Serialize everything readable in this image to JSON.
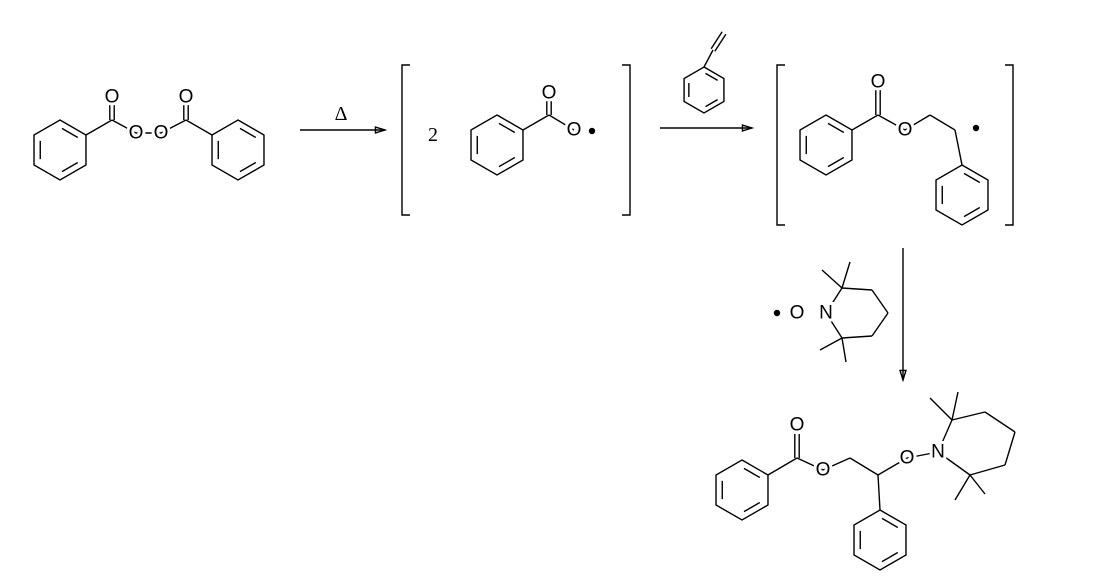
{
  "reactant": {
    "atoms": [
      "O",
      "O",
      "O",
      "O"
    ]
  },
  "step1": {
    "condition": "Δ",
    "coefficient": "2",
    "atoms": [
      "O",
      "O"
    ]
  },
  "step2": {
    "atoms": [
      "O",
      "O"
    ]
  },
  "step3": {
    "reagent_atoms": [
      "O",
      "N"
    ]
  },
  "product": {
    "atoms": [
      "O",
      "O",
      "O",
      "N"
    ]
  }
}
